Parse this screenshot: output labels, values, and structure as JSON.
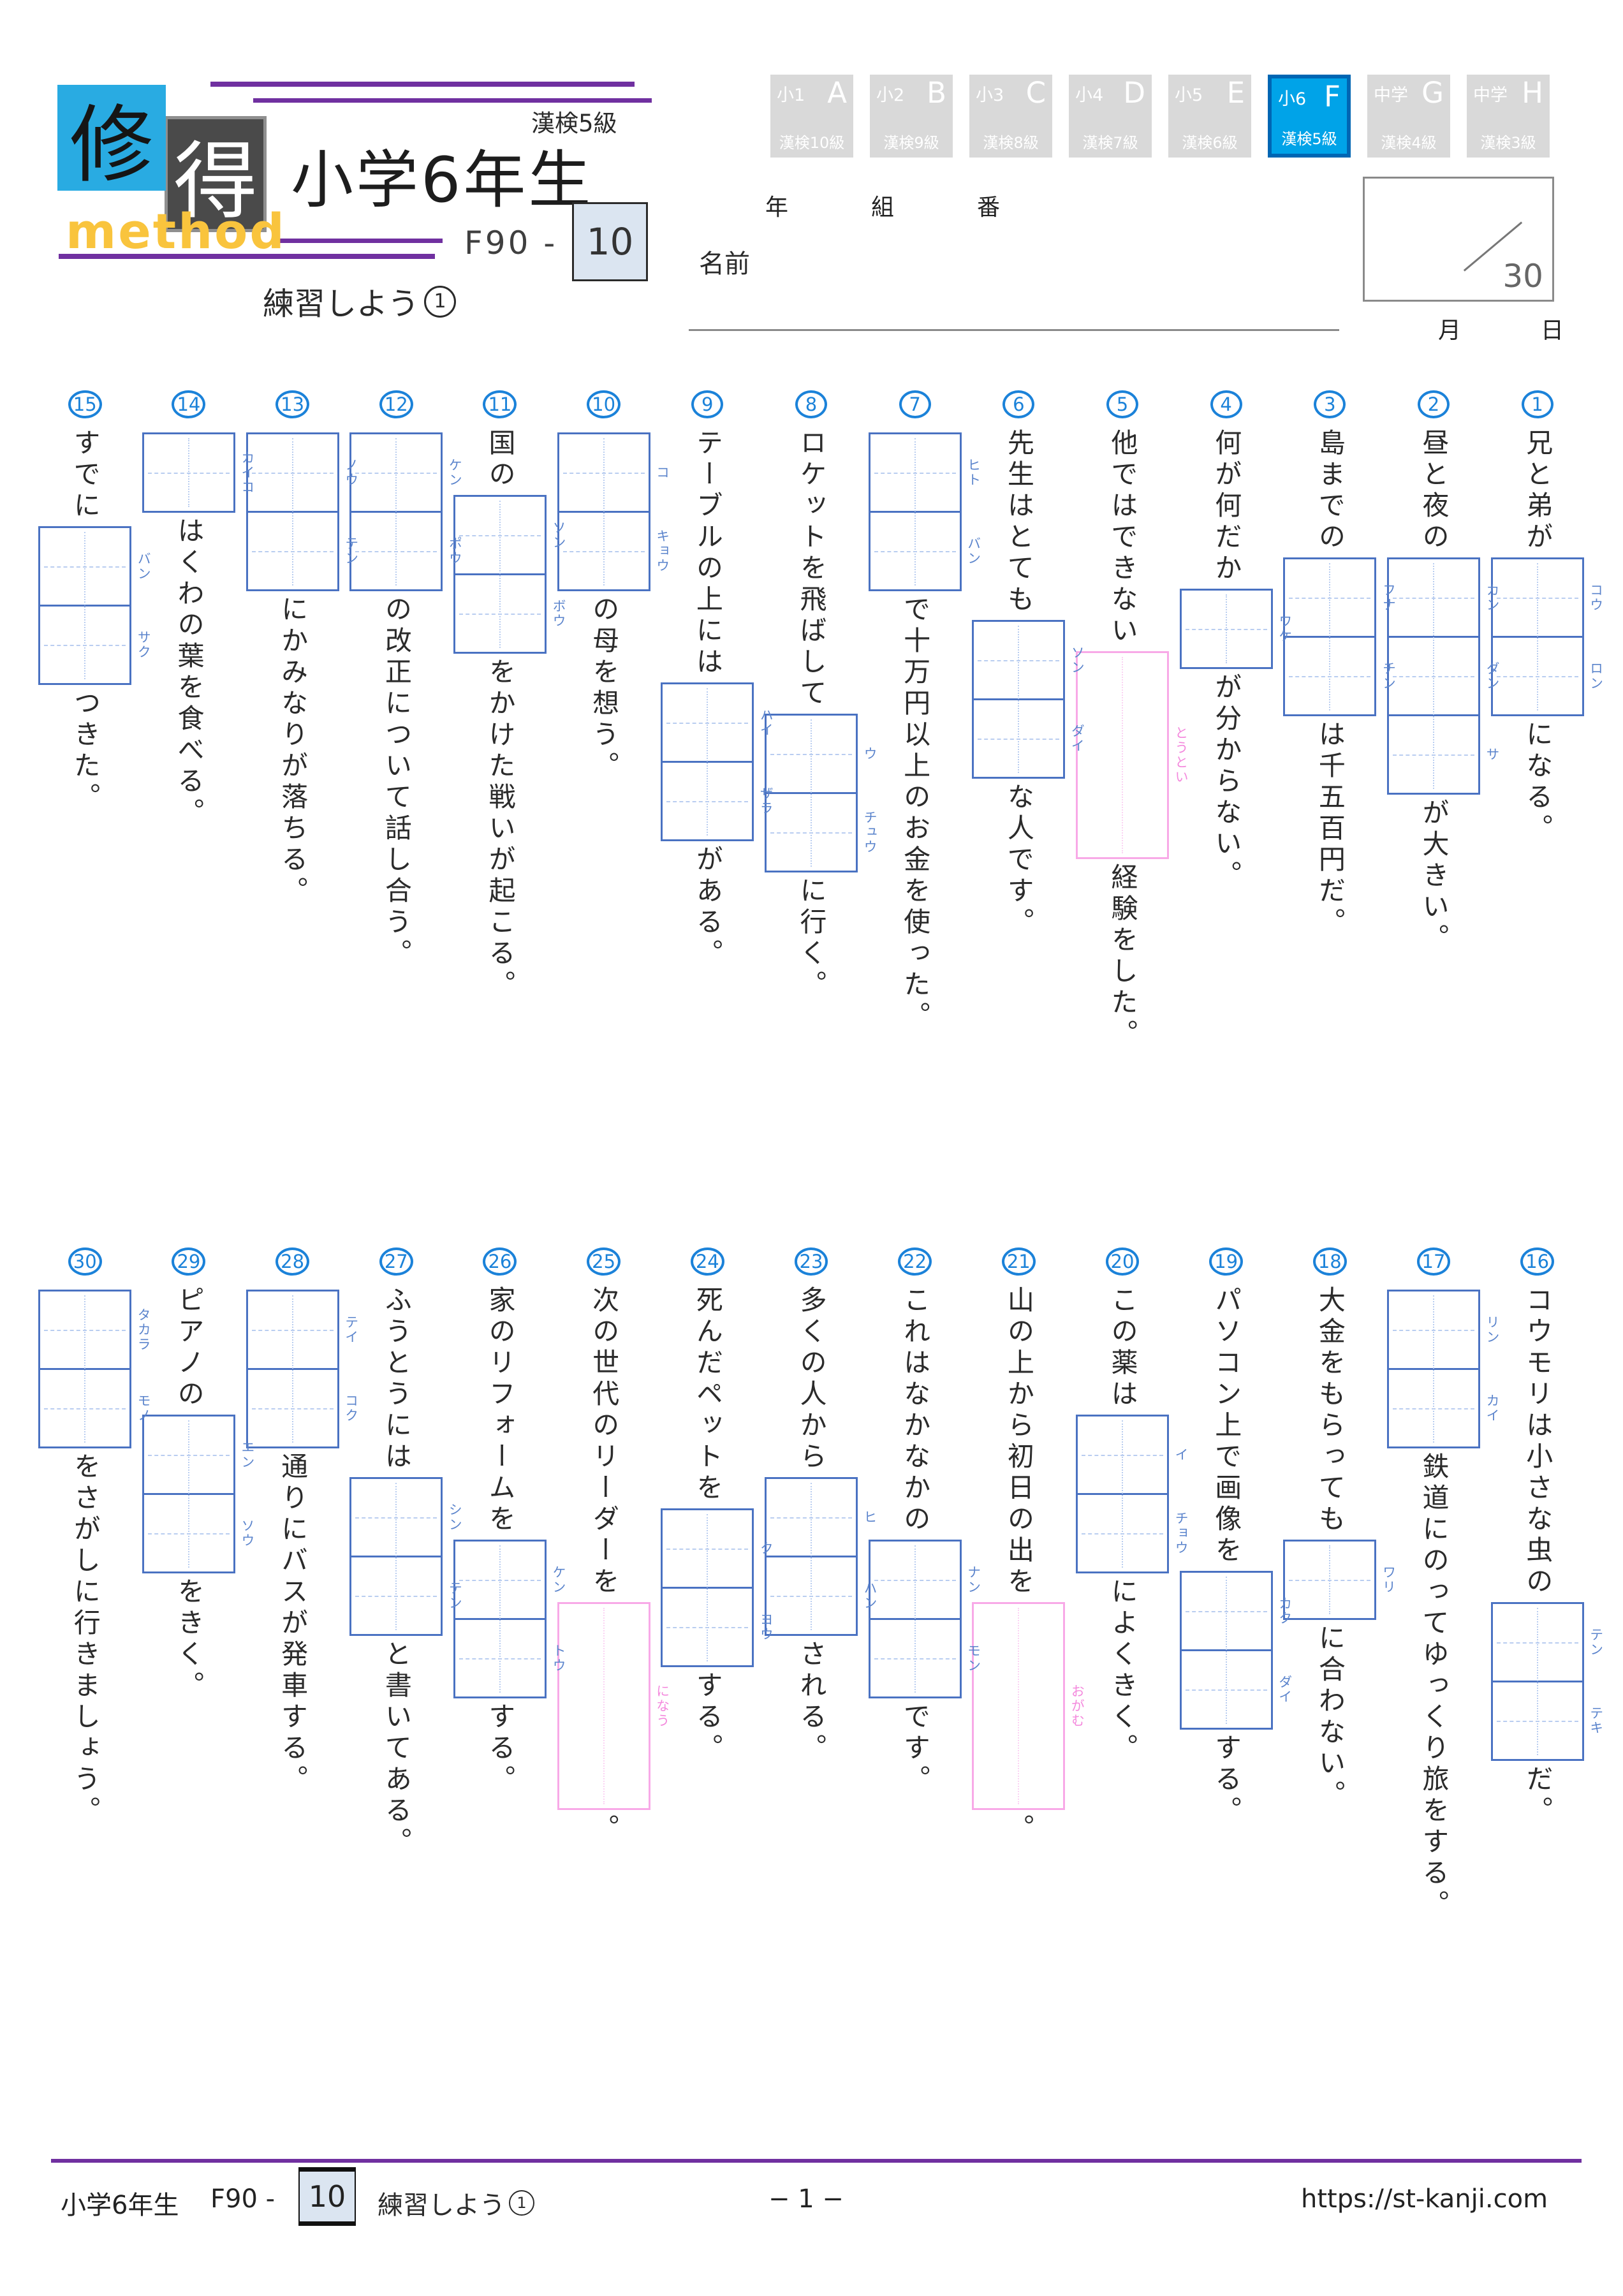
{
  "brand": {
    "tile1": "修",
    "tile2": "得",
    "caption": "method"
  },
  "header": {
    "kanken_level": "漢検5級",
    "doc_title": "小学6年生",
    "code_prefix": "F90",
    "code_separator": "-",
    "code_number": "10",
    "subtitle_text": "練習しよう",
    "subtitle_number": "1"
  },
  "tabs": [
    {
      "grade": "小1",
      "letter": "A",
      "level": "漢検10級",
      "active": false
    },
    {
      "grade": "小2",
      "letter": "B",
      "level": "漢検9級",
      "active": false
    },
    {
      "grade": "小3",
      "letter": "C",
      "level": "漢検8級",
      "active": false
    },
    {
      "grade": "小4",
      "letter": "D",
      "level": "漢検7級",
      "active": false
    },
    {
      "grade": "小5",
      "letter": "E",
      "level": "漢検6級",
      "active": false
    },
    {
      "grade": "小6",
      "letter": "F",
      "level": "漢検5級",
      "active": true
    },
    {
      "grade": "中学",
      "letter": "G",
      "level": "漢検4級",
      "active": false
    },
    {
      "grade": "中学",
      "letter": "H",
      "level": "漢検3級",
      "active": false
    }
  ],
  "student": {
    "year_label": "年",
    "class_label": "組",
    "number_label": "番",
    "name_label": "名前",
    "score_denominator": "30",
    "month_label": "月",
    "day_label": "日"
  },
  "exercises": [
    {
      "no": "1",
      "pre": "兄と弟が",
      "box": {
        "style": "blue",
        "cells": [
          "コウ",
          "ロン"
        ]
      },
      "post": "になる。"
    },
    {
      "no": "2",
      "pre": "昼と夜の",
      "box": {
        "style": "blue",
        "cells": [
          "カン",
          "ダン",
          "サ"
        ]
      },
      "post": "が大きい。"
    },
    {
      "no": "3",
      "pre": "島までの",
      "box": {
        "style": "blue",
        "cells": [
          "フナ",
          "チン"
        ]
      },
      "post": "は千五百円だ。"
    },
    {
      "no": "4",
      "pre": "何が何だか",
      "box": {
        "style": "blue",
        "cells": [
          "ワケ"
        ]
      },
      "post": "が分からない。"
    },
    {
      "no": "5",
      "pre": "他ではできない",
      "box": {
        "style": "pink",
        "reading": "とうとい"
      },
      "post": "経験をした。"
    },
    {
      "no": "6",
      "pre": "先生はとても",
      "box": {
        "style": "blue",
        "cells": [
          "ソン",
          "ダイ"
        ]
      },
      "post": "な人です。"
    },
    {
      "no": "7",
      "pre": "",
      "box": {
        "style": "blue",
        "cells": [
          "ヒト",
          "バン"
        ]
      },
      "post": "で十万円以上のお金を使った。"
    },
    {
      "no": "8",
      "pre": "ロケットを飛ばして",
      "box": {
        "style": "blue",
        "cells": [
          "ウ",
          "チュウ"
        ]
      },
      "post": "に行く。"
    },
    {
      "no": "9",
      "pre": "テーブルの上には",
      "box": {
        "style": "blue",
        "cells": [
          "ハイ",
          "ザラ"
        ]
      },
      "post": "がある。"
    },
    {
      "no": "10",
      "pre": "",
      "box": {
        "style": "blue",
        "cells": [
          "コ",
          "キョウ"
        ]
      },
      "post": "の母を想う。"
    },
    {
      "no": "11",
      "pre": "国の",
      "box": {
        "style": "blue",
        "cells": [
          "ソン",
          "ボウ"
        ]
      },
      "post": "をかけた戦いが起こる。"
    },
    {
      "no": "12",
      "pre": "",
      "box": {
        "style": "blue",
        "cells": [
          "ケン",
          "ポウ"
        ]
      },
      "post": "の改正について話し合う。"
    },
    {
      "no": "13",
      "pre": "",
      "box": {
        "style": "blue",
        "cells": [
          "ノウ",
          "テン"
        ]
      },
      "post": "にかみなりが落ちる。"
    },
    {
      "no": "14",
      "pre": "",
      "box": {
        "style": "blue",
        "cells": [
          "カイコ"
        ]
      },
      "post": "はくわの葉を食べる。"
    },
    {
      "no": "15",
      "pre": "すでに",
      "box": {
        "style": "blue",
        "cells": [
          "バン",
          "サク"
        ]
      },
      "post": "つきた。"
    },
    {
      "no": "16",
      "pre": "コウモリは小さな虫の",
      "box": {
        "style": "blue",
        "cells": [
          "テン",
          "テキ"
        ]
      },
      "post": "だ。"
    },
    {
      "no": "17",
      "pre": "",
      "box": {
        "style": "blue",
        "cells": [
          "リン",
          "カイ"
        ]
      },
      "post": "鉄道にのってゆっくり旅をする。"
    },
    {
      "no": "18",
      "pre": "大金をもらっても",
      "box": {
        "style": "blue",
        "cells": [
          "ワリ"
        ]
      },
      "post": "に合わない。"
    },
    {
      "no": "19",
      "pre": "パソコン上で画像を",
      "box": {
        "style": "blue",
        "cells": [
          "カク",
          "ダイ"
        ]
      },
      "post": "する。"
    },
    {
      "no": "20",
      "pre": "この薬は",
      "box": {
        "style": "blue",
        "cells": [
          "イ",
          "チョウ"
        ]
      },
      "post": "によくきく。"
    },
    {
      "no": "21",
      "pre": "山の上から初日の出を",
      "box": {
        "style": "pink",
        "reading": "おがむ"
      },
      "post": "。"
    },
    {
      "no": "22",
      "pre": "これはなかなかの",
      "box": {
        "style": "blue",
        "cells": [
          "ナン",
          "モン"
        ]
      },
      "post": "です。"
    },
    {
      "no": "23",
      "pre": "多くの人から",
      "box": {
        "style": "blue",
        "cells": [
          "ヒ",
          "ハン"
        ]
      },
      "post": "される。"
    },
    {
      "no": "24",
      "pre": "死んだペットを",
      "box": {
        "style": "blue",
        "cells": [
          "ク",
          "ヨウ"
        ]
      },
      "post": "する。"
    },
    {
      "no": "25",
      "pre": "次の世代のリーダーを",
      "box": {
        "style": "pink",
        "reading": "になう"
      },
      "post": "。"
    },
    {
      "no": "26",
      "pre": "家のリフォームを",
      "box": {
        "style": "blue",
        "cells": [
          "ケン",
          "トウ"
        ]
      },
      "post": "する。"
    },
    {
      "no": "27",
      "pre": "ふうとうには",
      "box": {
        "style": "blue",
        "cells": [
          "シン",
          "テン"
        ]
      },
      "post": "と書いてある。"
    },
    {
      "no": "28",
      "pre": "",
      "box": {
        "style": "blue",
        "cells": [
          "テイ",
          "コク"
        ]
      },
      "post": "通りにバスが発車する。"
    },
    {
      "no": "29",
      "pre": "ピアノの",
      "box": {
        "style": "blue",
        "cells": [
          "エン",
          "ソウ"
        ]
      },
      "post": "をきく。"
    },
    {
      "no": "30",
      "pre": "",
      "box": {
        "style": "blue",
        "cells": [
          "タカラ",
          "モノ"
        ]
      },
      "post": "をさがしに行きましょう。"
    }
  ],
  "footer": {
    "doc_title": "小学6年生",
    "code_prefix": "F90",
    "code_separator": "-",
    "code_number": "10",
    "subtitle_text": "練習しよう",
    "subtitle_number": "1",
    "page_indicator": "− 1 −",
    "url": "https://st-kanji.com"
  },
  "colors": {
    "accent_purple": "#7030a0",
    "tab_active": "#00a3e8",
    "tab_active_border": "#0066b3",
    "tab_inactive": "#d9d9d9",
    "badge_blue": "#1b82d9",
    "box_border_blue": "#4a72c2",
    "furigana_blue": "#5b84cc",
    "guide_dash_blue": "#b9cdf0",
    "box_border_pink": "#f8a9e7",
    "furigana_pink": "#f489dd",
    "logo_blue": "#29abe2",
    "logo_dark": "#4a4a4a",
    "logo_yellow": "#f9c43d",
    "number_box_bg": "#dbe5f1"
  }
}
